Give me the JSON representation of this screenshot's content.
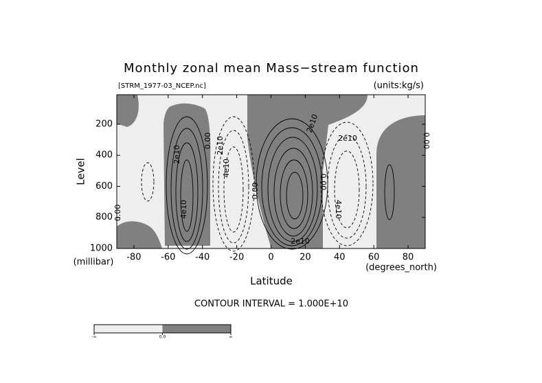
{
  "chart_data": {
    "type": "contour",
    "title": "Monthly zonal mean Mass−stream function",
    "subtitle_left": "[STRM_1977-03_NCEP.nc]",
    "subtitle_right": "(units:kg/s)",
    "x_label": "Latitude",
    "x_unit": "(degrees_north)",
    "y_label": "Level",
    "y_unit": "(millibar)",
    "xlim": [
      -90,
      90
    ],
    "xticks": [
      -80,
      -60,
      -40,
      -20,
      0,
      20,
      40,
      60,
      80
    ],
    "ylim": [
      1000,
      10
    ],
    "yticks": [
      200,
      400,
      600,
      800,
      1000
    ],
    "annotation": "CONTOUR INTERVAL = 1.000E+10",
    "contour_labels": [
      "2e10",
      "4e10",
      "0.00",
      "2e10",
      "4e10",
      "0.00",
      "2e10",
      "2e10",
      "0.00",
      "4e10",
      "0.00",
      "0.00",
      "2e10"
    ],
    "colorbar": {
      "labels": [
        "-∞",
        "0.0",
        "∞"
      ],
      "colors": [
        "#eeeeee",
        "#808080"
      ]
    }
  }
}
